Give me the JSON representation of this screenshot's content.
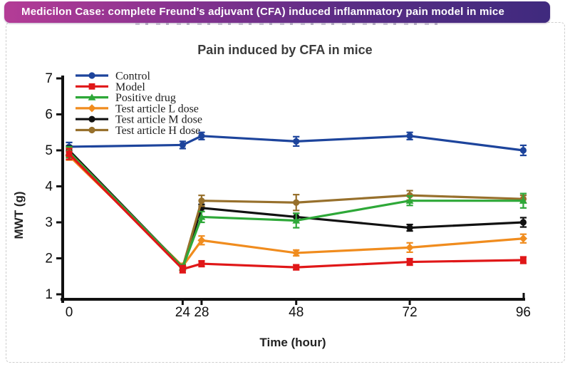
{
  "banner": {
    "text": "Medicilon Case: complete Freund’s adjuvant (CFA) induced inflammatory pain model in mice",
    "gradient_left": "#b43c96",
    "gradient_right": "#3f2a7e",
    "text_color": "#ffffff"
  },
  "chart_data": {
    "type": "line",
    "title": "Pain induced by CFA in mice",
    "title_color": "#3c3c3c",
    "xlabel": "Time (hour)",
    "ylabel": "MWT (g)",
    "x": [
      0,
      24,
      28,
      48,
      72,
      96
    ],
    "x_tick_labels": [
      "0",
      "24",
      "28",
      "48",
      "72",
      "96"
    ],
    "y_ticks": [
      1,
      2,
      3,
      4,
      5,
      6,
      7
    ],
    "ylim": [
      1,
      7
    ],
    "xlim": [
      0,
      96
    ],
    "grid": false,
    "legend_position": "top-left",
    "axis_color": "#111111",
    "series": [
      {
        "name": "Control",
        "color": "#1d449c",
        "marker": "circle",
        "values": [
          5.1,
          5.15,
          5.4,
          5.25,
          5.4,
          5.0
        ],
        "errors": [
          0.12,
          0.1,
          0.1,
          0.13,
          0.1,
          0.14
        ]
      },
      {
        "name": "Model",
        "color": "#e01718",
        "marker": "square",
        "values": [
          4.9,
          1.7,
          1.85,
          1.75,
          1.9,
          1.95
        ],
        "errors": [
          0.15,
          0.1,
          0.08,
          0.07,
          0.09,
          0.09
        ]
      },
      {
        "name": "Positive drug",
        "color": "#2ea838",
        "marker": "triangle",
        "values": [
          4.95,
          1.75,
          3.15,
          3.05,
          3.6,
          3.6
        ],
        "errors": [
          0.15,
          0.08,
          0.15,
          0.2,
          0.13,
          0.2
        ]
      },
      {
        "name": "Test article L dose",
        "color": "#f08c1e",
        "marker": "diamond",
        "values": [
          4.85,
          1.78,
          2.5,
          2.15,
          2.3,
          2.55
        ],
        "errors": [
          0.12,
          0.08,
          0.12,
          0.08,
          0.13,
          0.12
        ]
      },
      {
        "name": "Test article M dose",
        "color": "#111111",
        "marker": "circle",
        "values": [
          5.0,
          1.75,
          3.4,
          3.15,
          2.85,
          3.0
        ],
        "errors": [
          0.12,
          0.08,
          0.1,
          0.1,
          0.09,
          0.13
        ]
      },
      {
        "name": "Test article H dose",
        "color": "#97702c",
        "marker": "circle",
        "values": [
          4.95,
          1.75,
          3.6,
          3.55,
          3.75,
          3.65
        ],
        "errors": [
          0.12,
          0.08,
          0.15,
          0.22,
          0.13,
          0.1
        ]
      }
    ]
  }
}
